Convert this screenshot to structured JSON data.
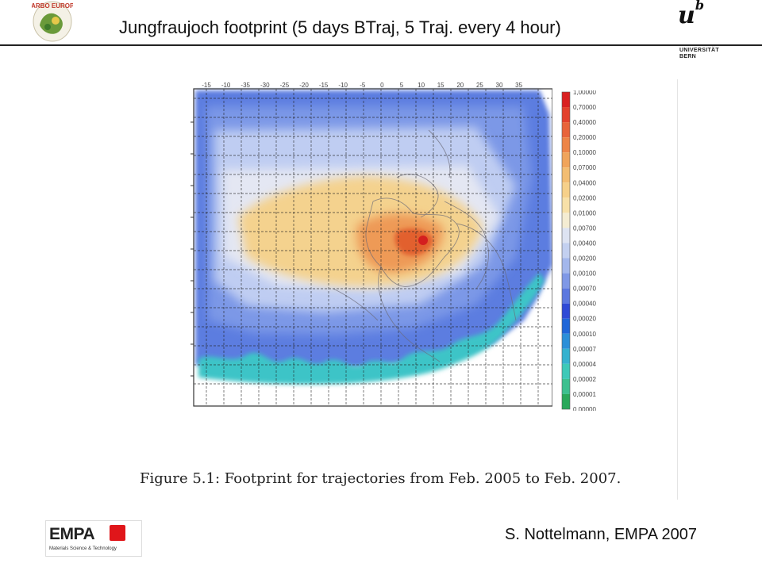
{
  "header": {
    "title": "Jungfraujoch footprint (5 days BTraj, 5 Traj. every 4 hour)",
    "logo_left_text": "CARBO EUROPE",
    "logo_right_mark": "u",
    "logo_right_sup": "b",
    "logo_right_text": "UNIVERSITÄT BERN"
  },
  "figure": {
    "x_ticks": [
      "-15",
      "-10",
      "-35",
      "-30",
      "-25",
      "-20",
      "-15",
      "-10",
      "-5",
      "0",
      "5",
      "10",
      "15",
      "20",
      "25",
      "30",
      "35"
    ],
    "legend_levels": [
      "1,00000",
      "0,70000",
      "0,40000",
      "0,20000",
      "0,10000",
      "0,07000",
      "0,04000",
      "0,02000",
      "0,01000",
      "0,00700",
      "0,00400",
      "0,00200",
      "0,00100",
      "0,00070",
      "0,00040",
      "0,00020",
      "0,00010",
      "0,00007",
      "0,00004",
      "0,00002",
      "0,00001",
      "0,00000"
    ],
    "legend_colors": [
      "#d92020",
      "#e3412c",
      "#e8643a",
      "#ed8547",
      "#f0a45b",
      "#f3bd72",
      "#f6d08a",
      "#f7e0a8",
      "#f4ecd2",
      "#dde3f2",
      "#c3d0f0",
      "#a3b7ec",
      "#7f98e6",
      "#5c78df",
      "#2f4ad6",
      "#1f66d8",
      "#2c8fd8",
      "#36b2cf",
      "#3ec9b8",
      "#3dc08f",
      "#2aa85b",
      "#1c9640"
    ],
    "caption": "Figure 5.1: Footprint for trajectories from Feb. 2005 to Feb. 2007."
  },
  "footer": {
    "logo_text": "EMPA",
    "logo_subtext": "Materials Science & Technology",
    "author": "S. Nottelmann, EMPA 2007"
  }
}
